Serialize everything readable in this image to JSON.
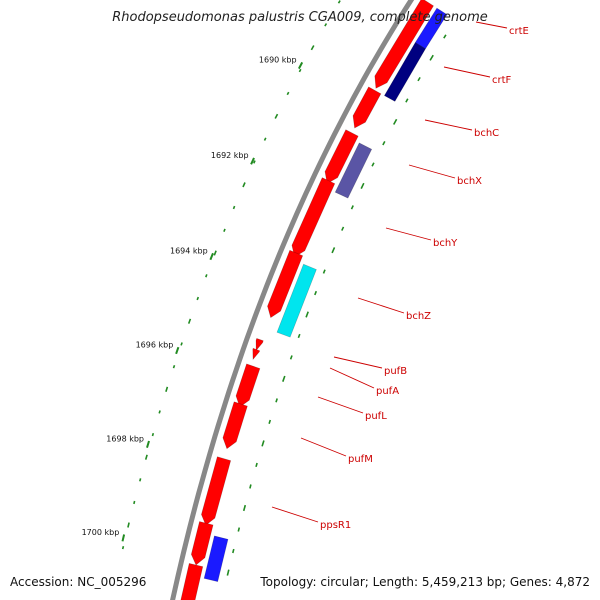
{
  "title": "Rhodopseudomonas palustris CGA009, complete genome",
  "footer": {
    "accession": "Accession: NC_005296",
    "topology": "Topology: circular; Length: 5,459,213 bp; Genes: 4,872"
  },
  "colors": {
    "backbone": "#888888",
    "forward_gene": "#ff0000",
    "highlight_cyan": "#00e5ee",
    "highlight_blue": "#1a1aff",
    "highlight_navy": "#000080",
    "highlight_purple": "#5a55a5",
    "gc_ticks": "#228b22",
    "label_text": "#cc0000"
  },
  "kbp_ticks": [
    {
      "label": "1690 kbp"
    },
    {
      "label": "1692 kbp"
    },
    {
      "label": "1694 kbp"
    },
    {
      "label": "1696 kbp"
    },
    {
      "label": "1698 kbp"
    },
    {
      "label": "1700 kbp"
    }
  ],
  "gene_labels": [
    "crtE",
    "crtF",
    "bchC",
    "bchX",
    "bchY",
    "bchZ",
    "pufB",
    "pufA",
    "pufL",
    "pufM",
    "ppsR1"
  ]
}
